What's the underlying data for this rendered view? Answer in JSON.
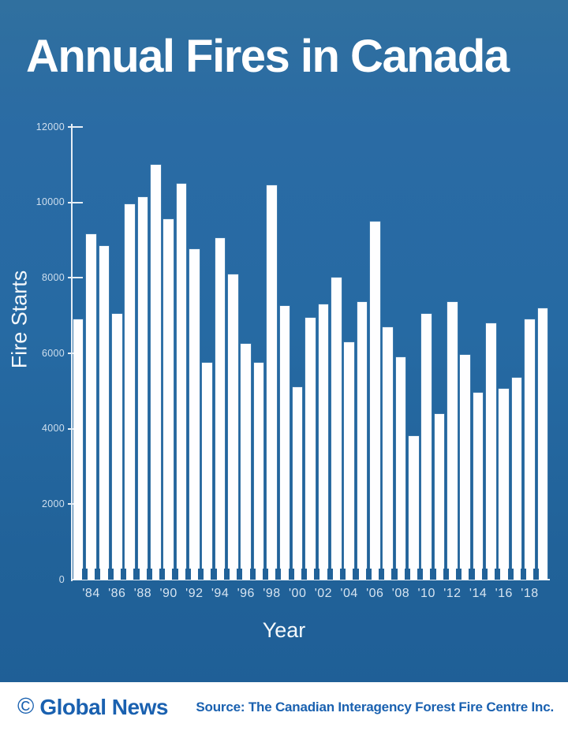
{
  "title": "Annual Fires in Canada",
  "chart_data": {
    "type": "bar",
    "title": "Annual Fires in Canada",
    "xlabel": "Year",
    "ylabel": "Fire Starts",
    "ylim": [
      0,
      12000
    ],
    "grid": "off",
    "legend": "none",
    "bar_color": "#ffffff",
    "years": [
      1983,
      1984,
      1985,
      1986,
      1987,
      1988,
      1989,
      1990,
      1991,
      1992,
      1993,
      1994,
      1995,
      1996,
      1997,
      1998,
      1999,
      2000,
      2001,
      2002,
      2003,
      2004,
      2005,
      2006,
      2007,
      2008,
      2009,
      2010,
      2011,
      2012,
      2013,
      2014,
      2015,
      2016,
      2017,
      2018,
      2019
    ],
    "values": [
      6900,
      9150,
      8850,
      7050,
      9950,
      10150,
      11000,
      9550,
      10500,
      8750,
      5750,
      9050,
      8100,
      6250,
      5750,
      10450,
      7250,
      5100,
      6950,
      7300,
      8000,
      6300,
      7350,
      9500,
      6700,
      5900,
      3800,
      7050,
      4400,
      7350,
      5950,
      4950,
      6800,
      5050,
      5350,
      6900,
      7200
    ],
    "yticks": [
      0,
      2000,
      4000,
      6000,
      8000,
      10000,
      12000
    ],
    "ytick_labels": [
      "0",
      "2000",
      "4000",
      "6000",
      "8000",
      "10000",
      "12000"
    ],
    "xticks": [
      {
        "year": 1984,
        "label": "'84"
      },
      {
        "year": 1986,
        "label": "'86"
      },
      {
        "year": 1988,
        "label": "'88"
      },
      {
        "year": 1990,
        "label": "'90"
      },
      {
        "year": 1992,
        "label": "'92"
      },
      {
        "year": 1994,
        "label": "'94"
      },
      {
        "year": 1996,
        "label": "'96"
      },
      {
        "year": 1998,
        "label": "'98"
      },
      {
        "year": 2000,
        "label": "'00"
      },
      {
        "year": 2002,
        "label": "'02"
      },
      {
        "year": 2004,
        "label": "'04"
      },
      {
        "year": 2006,
        "label": "'06"
      },
      {
        "year": 2008,
        "label": "'08"
      },
      {
        "year": 2010,
        "label": "'10"
      },
      {
        "year": 2012,
        "label": "'12"
      },
      {
        "year": 2014,
        "label": "'14"
      },
      {
        "year": 2016,
        "label": "'16"
      },
      {
        "year": 2018,
        "label": "'18"
      }
    ]
  },
  "colors": {
    "background_top": "#30709f",
    "background_bottom": "#1e5e96",
    "axis": "#e6eef5",
    "tick_label": "#cfdfee",
    "notch": "#216299",
    "footer_background": "#ffffff",
    "footer_text": "#1a61b0"
  },
  "footer": {
    "logo_icon": "copyright-circle-icon",
    "logo_text": "Global News",
    "source": "Source: The Canadian Interagency Forest Fire Centre Inc."
  }
}
